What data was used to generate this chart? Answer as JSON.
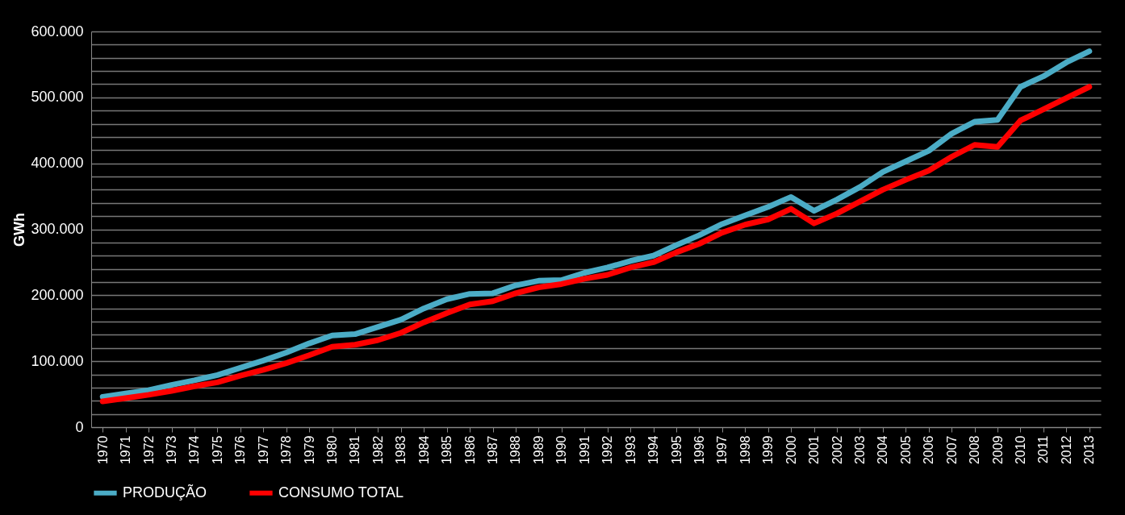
{
  "chart_data": {
    "type": "line",
    "ylabel": "GWh",
    "categories": [
      "1970",
      "1971",
      "1972",
      "1973",
      "1974",
      "1975",
      "1976",
      "1977",
      "1978",
      "1979",
      "1980",
      "1981",
      "1982",
      "1983",
      "1984",
      "1985",
      "1986",
      "1987",
      "1988",
      "1989",
      "1990",
      "1991",
      "1992",
      "1993",
      "1994",
      "1995",
      "1996",
      "1997",
      "1998",
      "1999",
      "2000",
      "2001",
      "2002",
      "2003",
      "2004",
      "2005",
      "2006",
      "2007",
      "2008",
      "2009",
      "2010",
      "2011",
      "2012",
      "2013"
    ],
    "series": [
      {
        "name": "PRODUÇÃO",
        "color": "#4bacc6",
        "values": [
          46000,
          51000,
          56000,
          64000,
          71000,
          79000,
          90000,
          101000,
          113000,
          127000,
          139000,
          141000,
          152000,
          163000,
          180000,
          194000,
          202000,
          203000,
          215000,
          222000,
          223000,
          234000,
          242000,
          252000,
          260000,
          276000,
          291000,
          308000,
          321000,
          334000,
          349000,
          328000,
          345000,
          364000,
          387000,
          403000,
          419000,
          445000,
          463000,
          466000,
          516000,
          532000,
          553000,
          570000
        ]
      },
      {
        "name": "CONSUMO TOTAL",
        "color": "#ff0000",
        "values": [
          39000,
          44000,
          49000,
          55000,
          62000,
          68000,
          78000,
          87000,
          97000,
          109000,
          122000,
          125000,
          132000,
          143000,
          159000,
          173000,
          186000,
          191000,
          203000,
          212000,
          217000,
          225000,
          231000,
          242000,
          250000,
          265000,
          278000,
          295000,
          307000,
          315000,
          331000,
          309000,
          324000,
          342000,
          360000,
          375000,
          389000,
          410000,
          428000,
          425000,
          465000,
          482000,
          499000,
          516000
        ]
      }
    ],
    "ylim": [
      0,
      600000
    ],
    "yticks": [
      0,
      {
        "value": 20000,
        "label": null
      },
      {
        "value": 40000,
        "label": null
      },
      {
        "value": 60000,
        "label": null
      },
      {
        "value": 80000,
        "label": null
      },
      {
        "value": 100000,
        "label": "100.000"
      },
      {
        "value": 120000,
        "label": null
      },
      {
        "value": 140000,
        "label": null
      },
      {
        "value": 160000,
        "label": null
      },
      {
        "value": 180000,
        "label": null
      },
      {
        "value": 200000,
        "label": "200.000"
      },
      {
        "value": 220000,
        "label": null
      },
      {
        "value": 240000,
        "label": null
      },
      {
        "value": 260000,
        "label": null
      },
      {
        "value": 280000,
        "label": null
      },
      {
        "value": 300000,
        "label": "300.000"
      },
      {
        "value": 320000,
        "label": null
      },
      {
        "value": 340000,
        "label": null
      },
      {
        "value": 360000,
        "label": null
      },
      {
        "value": 380000,
        "label": null
      },
      {
        "value": 400000,
        "label": "400.000"
      },
      {
        "value": 420000,
        "label": null
      },
      {
        "value": 440000,
        "label": null
      },
      {
        "value": 460000,
        "label": null
      },
      {
        "value": 480000,
        "label": null
      },
      {
        "value": 500000,
        "label": "500.000"
      },
      {
        "value": 520000,
        "label": null
      },
      {
        "value": 540000,
        "label": null
      },
      {
        "value": 560000,
        "label": null
      },
      {
        "value": 580000,
        "label": null
      },
      {
        "value": 600000,
        "label": "600.000"
      }
    ],
    "grid": "y",
    "legend": "bottom",
    "marker": "none",
    "line_style": "solid"
  }
}
